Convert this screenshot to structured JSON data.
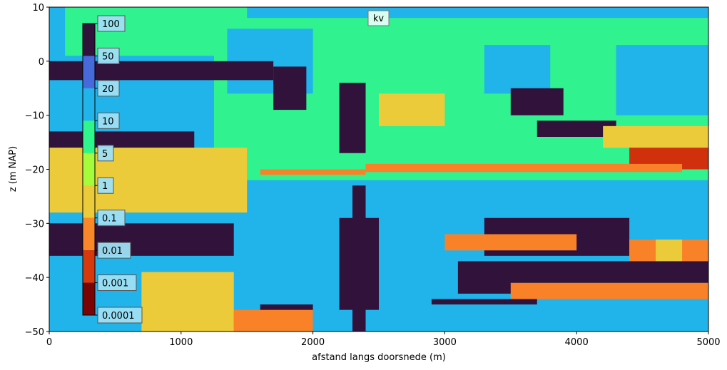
{
  "chart_data": {
    "type": "heatmap",
    "title": "kv",
    "xlabel": "afstand langs doorsnede (m)",
    "ylabel": "z (m NAP)",
    "xlim": [
      0,
      5000
    ],
    "ylim": [
      -50,
      10
    ],
    "xticks": [
      0,
      1000,
      2000,
      3000,
      4000,
      5000
    ],
    "yticks": [
      -50,
      -40,
      -30,
      -20,
      -10,
      0,
      10
    ],
    "grid": false,
    "colorbar": {
      "placement": "inset-left",
      "labels": [
        "100",
        "50",
        "20",
        "10",
        "5",
        "1",
        "0.1",
        "0.01",
        "0.001",
        "0.0001"
      ],
      "colors": [
        "#30123b",
        "#4669dc",
        "#21b4ea",
        "#2ef58c",
        "#a4fc3b",
        "#eccb3a",
        "#f9882b",
        "#d63a0c",
        "#7a0403"
      ]
    },
    "layer_colors": {
      "very_high": "#30123b",
      "high": "#21b4ea",
      "medium": "#30f28f",
      "low": "#eccb3a",
      "very_low": "#f98229",
      "minimal": "#d0300b"
    },
    "regions": [
      {
        "class": "high",
        "x": [
          0,
          5000
        ],
        "z": [
          -50,
          10
        ]
      },
      {
        "class": "medium",
        "x": [
          240,
          5000
        ],
        "z": [
          -22,
          8
        ]
      },
      {
        "class": "medium",
        "x": [
          120,
          1500
        ],
        "z": [
          -16,
          10
        ]
      },
      {
        "class": "high",
        "x": [
          0,
          1250
        ],
        "z": [
          -16,
          1
        ]
      },
      {
        "class": "high",
        "x": [
          1350,
          2000
        ],
        "z": [
          -6,
          6
        ]
      },
      {
        "class": "high",
        "x": [
          3300,
          3800
        ],
        "z": [
          -6,
          3
        ]
      },
      {
        "class": "high",
        "x": [
          4300,
          5000
        ],
        "z": [
          -10,
          3
        ]
      },
      {
        "class": "very_high",
        "x": [
          0,
          1700
        ],
        "z": [
          -3.5,
          0
        ]
      },
      {
        "class": "very_high",
        "x": [
          1700,
          1950
        ],
        "z": [
          -9,
          -1
        ]
      },
      {
        "class": "very_high",
        "x": [
          0,
          1100
        ],
        "z": [
          -16,
          -13
        ]
      },
      {
        "class": "very_high",
        "x": [
          2200,
          2400
        ],
        "z": [
          -17,
          -4
        ]
      },
      {
        "class": "low",
        "x": [
          2500,
          3000
        ],
        "z": [
          -12,
          -6
        ]
      },
      {
        "class": "very_high",
        "x": [
          3500,
          3900
        ],
        "z": [
          -10,
          -5
        ]
      },
      {
        "class": "very_high",
        "x": [
          3700,
          4300
        ],
        "z": [
          -14,
          -11
        ]
      },
      {
        "class": "low",
        "x": [
          4200,
          5000
        ],
        "z": [
          -16,
          -12
        ]
      },
      {
        "class": "low",
        "x": [
          0,
          1500
        ],
        "z": [
          -28,
          -16
        ]
      },
      {
        "class": "minimal",
        "x": [
          4400,
          5000
        ],
        "z": [
          -20,
          -16
        ]
      },
      {
        "class": "very_low",
        "x": [
          1600,
          2400
        ],
        "z": [
          -21,
          -20
        ]
      },
      {
        "class": "very_low",
        "x": [
          2400,
          4800
        ],
        "z": [
          -20.5,
          -19
        ]
      },
      {
        "class": "very_high",
        "x": [
          2300,
          2400
        ],
        "z": [
          -50,
          -23
        ]
      },
      {
        "class": "very_high",
        "x": [
          2200,
          2500
        ],
        "z": [
          -46,
          -29
        ]
      },
      {
        "class": "very_high",
        "x": [
          0,
          1400
        ],
        "z": [
          -36,
          -30
        ]
      },
      {
        "class": "very_high",
        "x": [
          3300,
          4400
        ],
        "z": [
          -36,
          -29
        ]
      },
      {
        "class": "very_low",
        "x": [
          3000,
          4000
        ],
        "z": [
          -35,
          -32
        ]
      },
      {
        "class": "very_low",
        "x": [
          4400,
          5000
        ],
        "z": [
          -39,
          -33
        ]
      },
      {
        "class": "low",
        "x": [
          4600,
          4800
        ],
        "z": [
          -37,
          -33
        ]
      },
      {
        "class": "high",
        "x": [
          0,
          2000
        ],
        "z": [
          -49,
          -37
        ]
      },
      {
        "class": "low",
        "x": [
          700,
          1400
        ],
        "z": [
          -50,
          -39
        ]
      },
      {
        "class": "very_low",
        "x": [
          1400,
          2000
        ],
        "z": [
          -50,
          -46
        ]
      },
      {
        "class": "very_high",
        "x": [
          1600,
          2000
        ],
        "z": [
          -46,
          -45
        ]
      },
      {
        "class": "very_high",
        "x": [
          3100,
          5000
        ],
        "z": [
          -43,
          -37
        ]
      },
      {
        "class": "very_low",
        "x": [
          3500,
          5000
        ],
        "z": [
          -44,
          -41
        ]
      },
      {
        "class": "very_high",
        "x": [
          2900,
          3700
        ],
        "z": [
          -45,
          -44
        ]
      }
    ]
  }
}
